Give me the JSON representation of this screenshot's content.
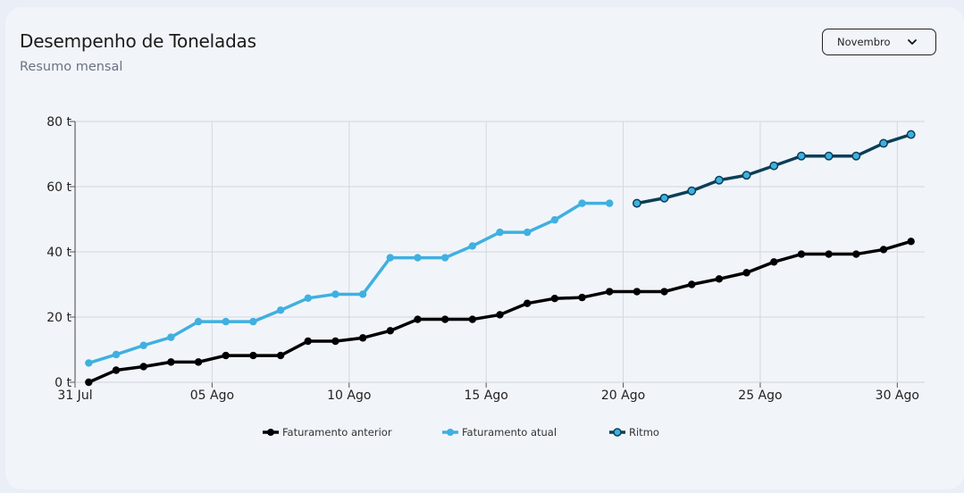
{
  "header": {
    "title": "Desempenho de Toneladas",
    "subtitle": "Resumo mensal"
  },
  "month_select": {
    "value": "Novembro",
    "icon": "chevron-down-icon"
  },
  "colors": {
    "anterior": "#000000",
    "atual": "#3fb0e0",
    "ritmo_line": "#0b3f57",
    "ritmo_marker": "#3fb0e0",
    "grid": "#d4d8de"
  },
  "chart_data": {
    "type": "line",
    "title": "Desempenho de Toneladas",
    "subtitle": "Resumo mensal",
    "xlabel": "",
    "ylabel": "",
    "ylim": [
      0,
      80
    ],
    "y_ticks": [
      0,
      20,
      40,
      60,
      80
    ],
    "y_tick_labels": [
      "0 t",
      "20 t",
      "40 t",
      "60 t",
      "80 t"
    ],
    "x_ticks": [
      0,
      5,
      10,
      15,
      20,
      25,
      30
    ],
    "x_tick_labels": [
      "31 Jul",
      "05 Ago",
      "10 Ago",
      "15 Ago",
      "20 Ago",
      "25 Ago",
      "30 Ago"
    ],
    "xlim": [
      0,
      31
    ],
    "grid": true,
    "legend_position": "bottom",
    "series": [
      {
        "name": "Faturamento anterior",
        "x": [
          0.5,
          1.5,
          2.5,
          3.5,
          4.5,
          5.5,
          6.5,
          7.5,
          8.5,
          9.5,
          10.5,
          11.5,
          12.5,
          13.5,
          14.5,
          15.5,
          16.5,
          17.5,
          18.5,
          19.5,
          20.5,
          21.5,
          22.5,
          23.5,
          24.5,
          25.5,
          26.5,
          27.5,
          28.5,
          29.5,
          30.5
        ],
        "values": [
          0,
          3.7,
          4.8,
          6.2,
          6.2,
          8.2,
          8.2,
          8.2,
          12.6,
          12.6,
          13.6,
          15.8,
          19.3,
          19.3,
          19.3,
          20.7,
          24.2,
          25.7,
          26.0,
          27.8,
          27.8,
          27.8,
          30.0,
          31.7,
          33.6,
          36.9,
          39.3,
          39.3,
          39.3,
          40.7,
          43.2
        ]
      },
      {
        "name": "Faturamento atual",
        "x": [
          0.5,
          1.5,
          2.5,
          3.5,
          4.5,
          5.5,
          6.5,
          7.5,
          8.5,
          9.5,
          10.5,
          11.5,
          12.5,
          13.5,
          14.5,
          15.5,
          16.5,
          17.5,
          18.5,
          19.5
        ],
        "values": [
          5.9,
          8.5,
          11.3,
          13.8,
          18.6,
          18.6,
          18.6,
          22.1,
          25.8,
          27.0,
          27.0,
          38.2,
          38.2,
          38.2,
          41.8,
          46.0,
          46.0,
          49.8,
          54.9,
          54.9
        ]
      },
      {
        "name": "Ritmo",
        "x": [
          20.5,
          21.5,
          22.5,
          23.5,
          24.5,
          25.5,
          26.5,
          27.5,
          28.5,
          29.5,
          30.5
        ],
        "values": [
          54.9,
          56.5,
          58.7,
          62.0,
          63.5,
          66.4,
          69.4,
          69.4,
          69.4,
          73.3,
          76.0
        ]
      }
    ]
  }
}
